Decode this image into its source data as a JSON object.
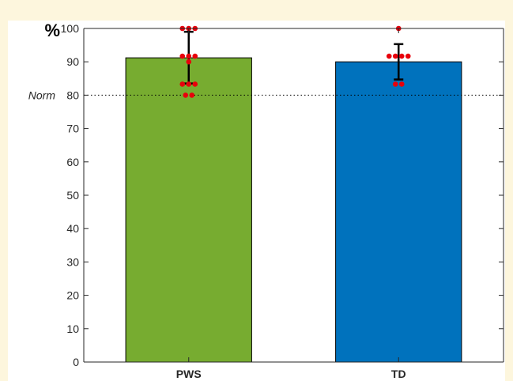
{
  "chart_data": {
    "type": "bar",
    "categories": [
      "PWS",
      "TD"
    ],
    "values": [
      91.2,
      90.0
    ],
    "colors": [
      "#77ac30",
      "#0072bd"
    ],
    "error_bars": [
      {
        "low": 83.5,
        "high": 99.0
      },
      {
        "low": 84.7,
        "high": 95.3
      }
    ],
    "points": [
      [
        100,
        100,
        100,
        91.7,
        91.7,
        91.7,
        90,
        83.3,
        83.3,
        83.3,
        80,
        80
      ],
      [
        100,
        91.7,
        91.7,
        91.7,
        91.7,
        83.3,
        83.3
      ]
    ],
    "point_color": "#e8000b",
    "ylim": [
      0,
      100
    ],
    "yticks": [
      0,
      10,
      20,
      30,
      40,
      50,
      60,
      70,
      80,
      90,
      100
    ],
    "ylabel": "%",
    "reference_line": {
      "value": 80,
      "label": "Norm"
    },
    "xlabel": "",
    "grid": false
  }
}
